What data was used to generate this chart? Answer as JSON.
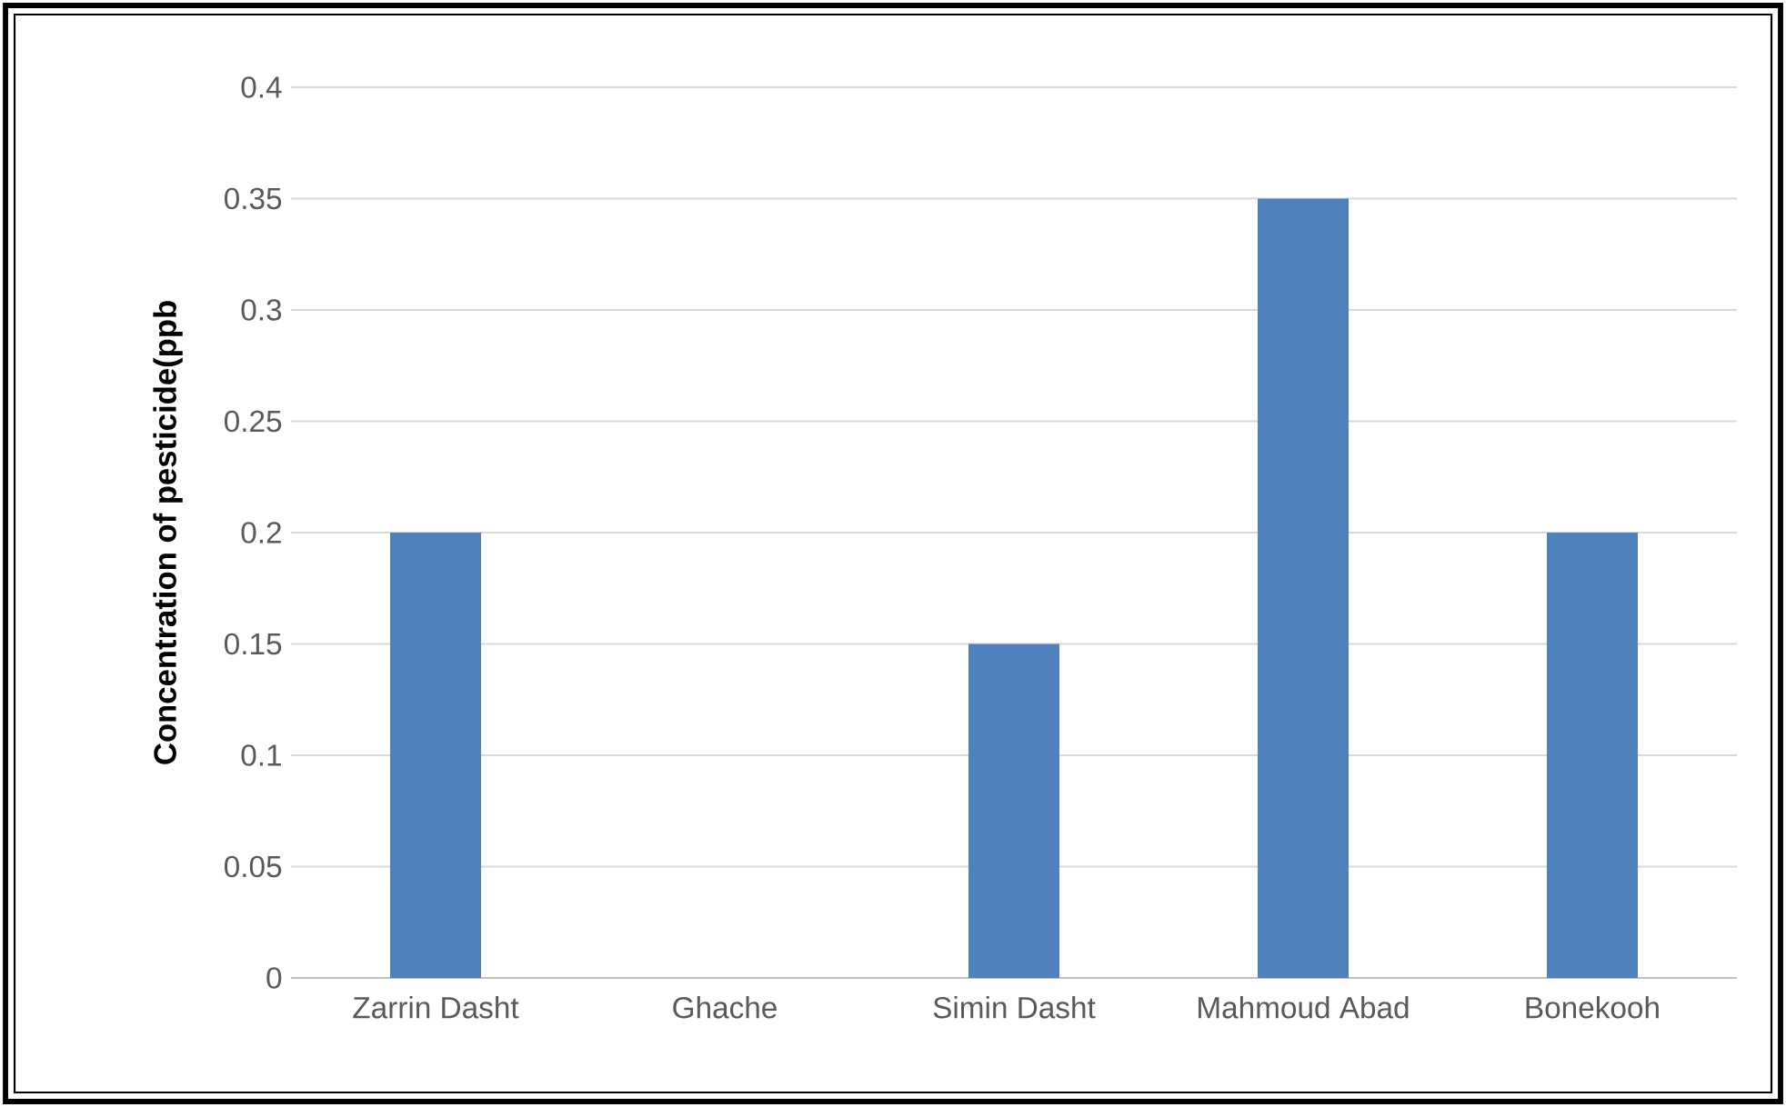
{
  "chart_data": {
    "type": "bar",
    "ylabel": "Concentration of pesticide(ppb",
    "categories": [
      "Zarrin Dasht",
      "Ghache",
      "Simin Dasht",
      "Mahmoud Abad",
      "Bonekooh"
    ],
    "values": [
      0.2,
      0,
      0.15,
      0.35,
      0.2
    ],
    "color": "#4f81bd",
    "ylim": [
      0,
      0.4
    ],
    "yticks": [
      0,
      0.05,
      0.1,
      0.15,
      0.2,
      0.25,
      0.3,
      0.35,
      0.4
    ],
    "grid": "y"
  }
}
